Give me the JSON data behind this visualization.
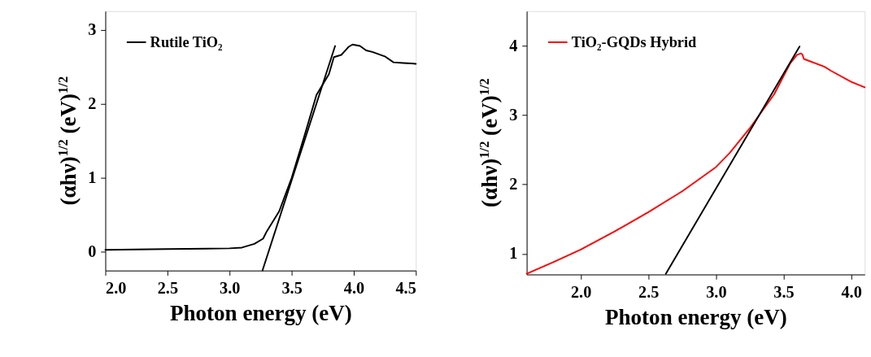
{
  "chart_data": [
    {
      "type": "line",
      "xlabel": "Photon energy (eV)",
      "ylabel": "(αhν)$^{1/2}$ (eV)$^{1/2}$",
      "xlim": [
        2.0,
        4.5
      ],
      "ylim": [
        -0.25,
        3.25
      ],
      "xticks": [
        {
          "value": 2.0,
          "label": "2.0"
        },
        2.5,
        {
          "value": 3.0,
          "label": "3.0"
        },
        3.5,
        {
          "value": 4.0,
          "label": "4.0"
        },
        4.5
      ],
      "yticks": [
        0,
        1,
        2,
        3
      ],
      "grid": false,
      "legend": "top left",
      "line_style": "solid",
      "marker": "none",
      "series": [
        {
          "name": "Rutile TiO₂",
          "color": "#000000",
          "x": [
            2.0,
            2.5,
            3.0,
            3.1,
            3.2,
            3.27,
            3.3,
            3.4,
            3.5,
            3.6,
            3.7,
            3.8,
            3.84,
            3.9,
            3.96,
            3.99,
            4.05,
            4.1,
            4.15,
            4.25,
            4.32,
            4.4,
            4.5
          ],
          "values": [
            0.03,
            0.04,
            0.05,
            0.06,
            0.11,
            0.18,
            0.28,
            0.55,
            1.0,
            1.55,
            2.12,
            2.4,
            2.63,
            2.66,
            2.77,
            2.8,
            2.78,
            2.72,
            2.7,
            2.64,
            2.56,
            2.55,
            2.54
          ]
        },
        {
          "type": "line",
          "color": "#000000",
          "x": [
            3.85,
            3.265
          ],
          "values": [
            2.78,
            -0.25
          ]
        }
      ]
    },
    {
      "type": "line",
      "xlabel": "Photon energy (eV)",
      "ylabel": "(αhν)$^{1/2}$ (eV)$^{1/2}$",
      "xlim": [
        1.6,
        4.1
      ],
      "ylim": [
        0.7,
        4.5
      ],
      "xticks": [
        {
          "value": 2.0,
          "label": "2.0"
        },
        2.5,
        {
          "value": 3.0,
          "label": "3.0"
        },
        3.5,
        {
          "value": 4.0,
          "label": "4.0"
        }
      ],
      "yticks": [
        1,
        2,
        3,
        4
      ],
      "grid": false,
      "legend": "top left",
      "line_style": "solid",
      "marker": "none",
      "series": [
        {
          "name": "TiO₂-GQDs Hybrid",
          "color": "#ff0000",
          "x": [
            1.6,
            1.8,
            2.0,
            2.25,
            2.5,
            2.75,
            3.0,
            3.1,
            3.25,
            3.43,
            3.55,
            3.6,
            3.63,
            3.64,
            3.65,
            3.8,
            3.85,
            4.0,
            4.1
          ],
          "values": [
            0.71,
            0.88,
            1.06,
            1.32,
            1.6,
            1.9,
            2.25,
            2.45,
            2.81,
            3.3,
            3.75,
            3.87,
            3.89,
            3.87,
            3.81,
            3.7,
            3.64,
            3.48,
            3.4
          ]
        },
        {
          "type": "line",
          "color": "#000000",
          "x": [
            3.618,
            2.629
          ],
          "values": [
            3.99,
            0.71
          ]
        }
      ]
    }
  ]
}
